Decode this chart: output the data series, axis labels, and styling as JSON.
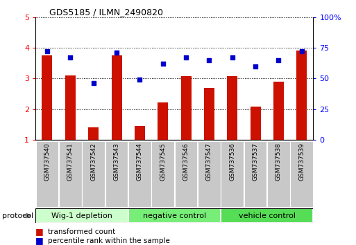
{
  "title": "GDS5185 / ILMN_2490820",
  "samples": [
    "GSM737540",
    "GSM737541",
    "GSM737542",
    "GSM737543",
    "GSM737544",
    "GSM737545",
    "GSM737546",
    "GSM737547",
    "GSM737536",
    "GSM737537",
    "GSM737538",
    "GSM737539"
  ],
  "transformed_count": [
    3.75,
    3.1,
    1.4,
    3.75,
    1.45,
    2.22,
    3.08,
    2.68,
    3.08,
    2.08,
    2.9,
    3.92
  ],
  "percentile_rank": [
    72,
    67,
    46,
    71,
    49,
    62,
    67,
    65,
    67,
    60,
    65,
    72
  ],
  "bar_color": "#cc1100",
  "dot_color": "#0000cc",
  "left_ylim": [
    1,
    5
  ],
  "right_ylim": [
    0,
    100
  ],
  "left_yticks": [
    1,
    2,
    3,
    4,
    5
  ],
  "right_yticks": [
    0,
    25,
    50,
    75,
    100
  ],
  "right_yticklabels": [
    "0",
    "25",
    "50",
    "75",
    "100%"
  ],
  "groups": [
    {
      "label": "Wig-1 depletion",
      "indices": [
        0,
        1,
        2,
        3
      ],
      "color": "#ccffcc"
    },
    {
      "label": "negative control",
      "indices": [
        4,
        5,
        6,
        7
      ],
      "color": "#77ee77"
    },
    {
      "label": "vehicle control",
      "indices": [
        8,
        9,
        10,
        11
      ],
      "color": "#55dd55"
    }
  ],
  "protocol_label": "protocol",
  "legend_red": "transformed count",
  "legend_blue": "percentile rank within the sample",
  "bar_bottom": 1.0,
  "tick_bg_color": "#c8c8c8"
}
